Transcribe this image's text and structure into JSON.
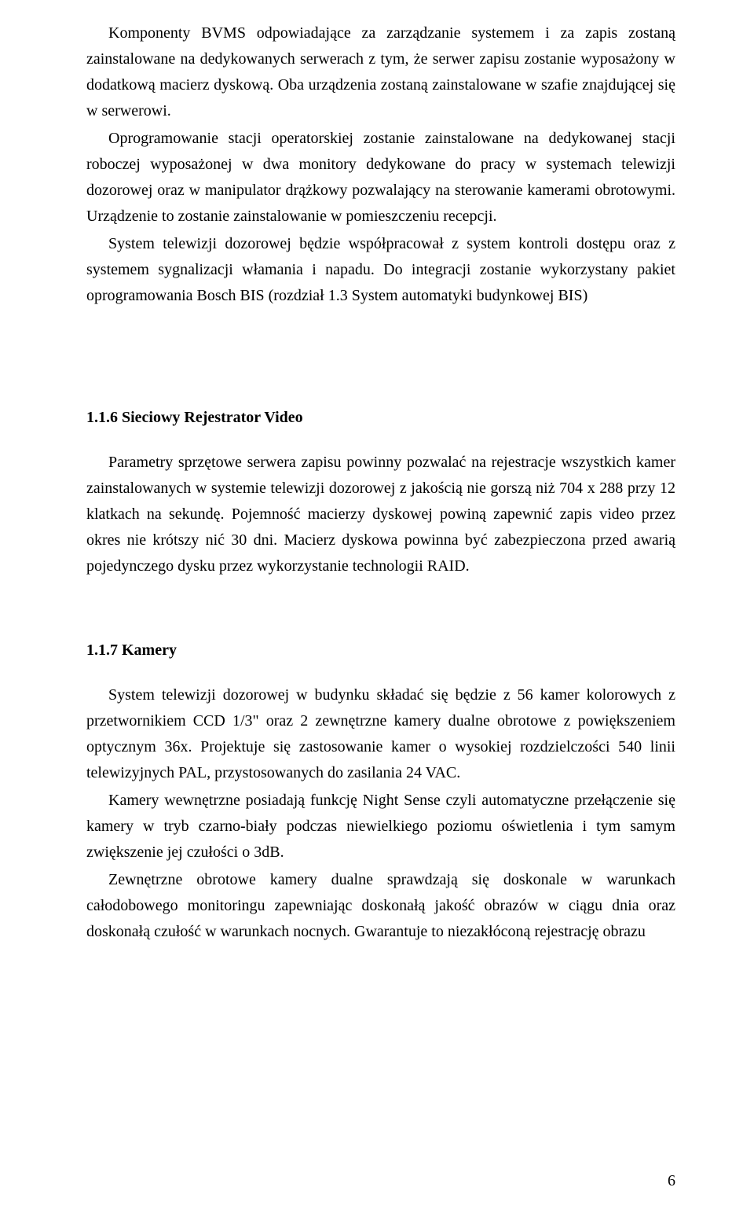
{
  "page": {
    "number": "6",
    "font_family": "Times New Roman",
    "body_fontsize_pt": 15,
    "text_color": "#000000",
    "background_color": "#ffffff"
  },
  "paragraphs": {
    "p1": "Komponenty BVMS odpowiadające za zarządzanie systemem i za zapis zostaną zainstalowane na dedykowanych serwerach z tym, że serwer zapisu zostanie wyposażony w  dodatkową macierz dyskową. Oba urządzenia zostaną zainstalowane w szafie znajdującej się w serwerowi.",
    "p2": "Oprogramowanie stacji operatorskiej zostanie zainstalowane na dedykowanej stacji roboczej wyposażonej w dwa monitory dedykowane do pracy w systemach telewizji dozorowej oraz w manipulator drążkowy pozwalający na sterowanie kamerami obrotowymi. Urządzenie to zostanie zainstalowanie w pomieszczeniu recepcji.",
    "p3": "System telewizji dozorowej będzie współpracował z system kontroli dostępu oraz z systemem sygnalizacji włamania i napadu. Do integracji zostanie wykorzystany pakiet oprogramowania Bosch BIS (rozdział 1.3 System automatyki budynkowej BIS)",
    "h1": "1.1.6    Sieciowy Rejestrator Video",
    "p4": "Parametry sprzętowe serwera zapisu powinny pozwalać na rejestracje wszystkich kamer zainstalowanych w systemie telewizji dozorowej z jakością nie gorszą niż 704 x 288 przy 12 klatkach na sekundę. Pojemność macierzy dyskowej powiną zapewnić zapis video przez okres nie krótszy nić 30 dni. Macierz dyskowa powinna być zabezpieczona przed awarią pojedynczego dysku przez wykorzystanie technologii RAID.",
    "h2": "1.1.7    Kamery",
    "p5": "System telewizji dozorowej w budynku składać się będzie z 56 kamer kolorowych z przetwornikiem CCD 1/3\" oraz  2 zewnętrzne kamery dualne obrotowe z powiększeniem optycznym 36x. Projektuje się zastosowanie kamer o wysokiej rozdzielczości 540 linii telewizyjnych PAL, przystosowanych do zasilania 24 VAC.",
    "p6": "Kamery wewnętrzne posiadają funkcję Night Sense czyli automatyczne przełączenie się kamery w tryb czarno-biały podczas niewielkiego poziomu oświetlenia i tym samym zwiększenie jej czułości o 3dB.",
    "p7": "Zewnętrzne obrotowe kamery dualne sprawdzają się doskonale w warunkach całodobowego monitoringu zapewniając doskonałą jakość obrazów w ciągu dnia oraz doskonałą czułość w warunkach nocnych. Gwarantuje to niezakłóconą rejestrację obrazu"
  }
}
